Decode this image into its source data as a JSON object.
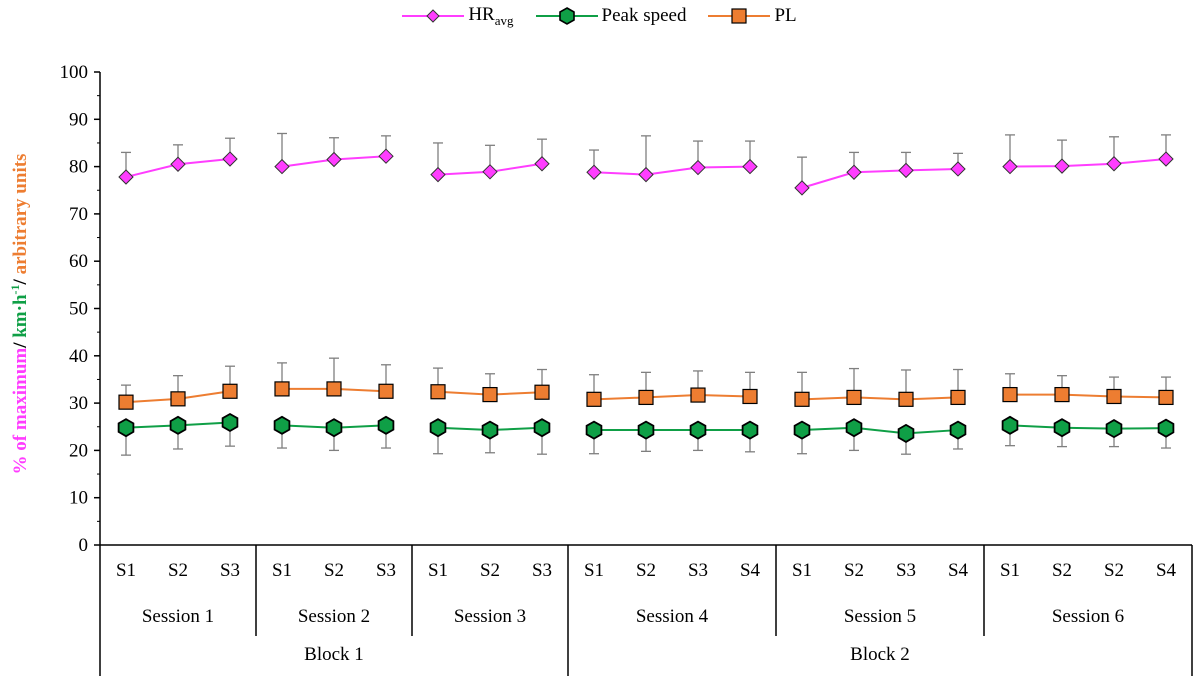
{
  "chart_data": {
    "type": "line",
    "ylabel_parts": [
      "% of maximum",
      "/ ",
      "km·h",
      "-1",
      "/ ",
      "arbitrary units"
    ],
    "ylim": [
      0,
      100
    ],
    "yticks": [
      0,
      10,
      20,
      30,
      40,
      50,
      60,
      70,
      80,
      90,
      100
    ],
    "categories": [
      "S1",
      "S2",
      "S3",
      "S1",
      "S2",
      "S3",
      "S1",
      "S2",
      "S3",
      "S1",
      "S2",
      "S3",
      "S4",
      "S1",
      "S2",
      "S3",
      "S4",
      "S1",
      "S2",
      "S2",
      "S4"
    ],
    "sessions": [
      {
        "label": "Session 1",
        "count": 3
      },
      {
        "label": "Session 2",
        "count": 3
      },
      {
        "label": "Session 3",
        "count": 3
      },
      {
        "label": "Session 4",
        "count": 4
      },
      {
        "label": "Session 5",
        "count": 4
      },
      {
        "label": "Session 6",
        "count": 4
      }
    ],
    "blocks": [
      {
        "label": "Block 1",
        "count": 9
      },
      {
        "label": "Block 2",
        "count": 12
      }
    ],
    "series": [
      {
        "name": "HR",
        "name_sub": "avg",
        "color": "#ff3dff",
        "marker": "diamond",
        "values": [
          77.8,
          80.5,
          81.6,
          80.0,
          81.5,
          82.2,
          78.3,
          78.9,
          80.6,
          78.8,
          78.3,
          79.8,
          80.0,
          75.5,
          78.8,
          79.2,
          79.5,
          80.0,
          80.1,
          80.6,
          81.6
        ],
        "upper": [
          83.0,
          84.6,
          86.0,
          87.0,
          86.1,
          86.5,
          85.0,
          84.5,
          85.8,
          83.5,
          86.5,
          85.4,
          85.4,
          82.0,
          83.0,
          83.0,
          82.8,
          86.7,
          85.6,
          86.3,
          86.7
        ]
      },
      {
        "name": "Peak speed",
        "color": "#0f9f46",
        "marker": "hexagon",
        "values": [
          24.8,
          25.3,
          25.9,
          25.3,
          24.8,
          25.3,
          24.8,
          24.3,
          24.8,
          24.3,
          24.3,
          24.3,
          24.3,
          24.3,
          24.8,
          23.6,
          24.3,
          25.3,
          24.8,
          24.6,
          24.7
        ],
        "lower": [
          19.0,
          20.3,
          20.9,
          20.5,
          20.0,
          20.5,
          19.3,
          19.5,
          19.2,
          19.3,
          19.8,
          20.0,
          19.7,
          19.3,
          20.0,
          19.2,
          20.3,
          21.0,
          20.8,
          20.8,
          20.5
        ]
      },
      {
        "name": "PL",
        "color": "#ed7d31",
        "marker": "square",
        "values": [
          30.2,
          30.9,
          32.5,
          33.0,
          33.0,
          32.5,
          32.4,
          31.8,
          32.3,
          30.8,
          31.2,
          31.7,
          31.4,
          30.8,
          31.2,
          30.8,
          31.2,
          31.8,
          31.8,
          31.4,
          31.2
        ],
        "upper": [
          33.8,
          35.8,
          37.8,
          38.5,
          39.5,
          38.1,
          37.4,
          36.2,
          37.1,
          36.0,
          36.5,
          36.8,
          36.5,
          36.5,
          37.3,
          37.0,
          37.1,
          36.2,
          35.8,
          35.5,
          35.5
        ]
      }
    ],
    "grid": false,
    "legend_position": "top"
  }
}
